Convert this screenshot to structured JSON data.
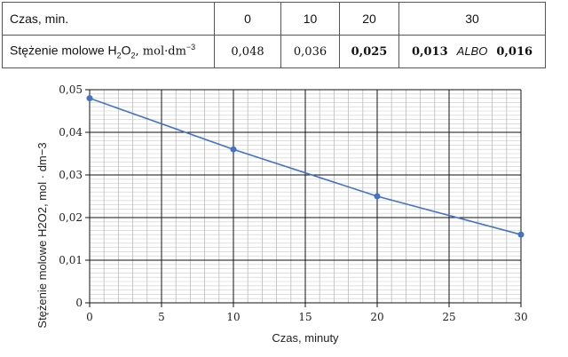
{
  "table": {
    "row1_label": "Czas, min.",
    "row2_label_main": "Stężenie molowe H",
    "row2_label_rest": "O",
    "row2_label_unit": ", mol·dm",
    "times": [
      "0",
      "10",
      "20",
      "30"
    ],
    "values": [
      "0,048",
      "0,036",
      "0,025"
    ],
    "last_a": "0,013",
    "albo": "ALBO",
    "last_b": "0,016"
  },
  "chart_data": {
    "type": "line",
    "x": [
      0,
      10,
      20,
      30
    ],
    "y": [
      0.048,
      0.036,
      0.025,
      0.016
    ],
    "xlabel": "Czas, minuty",
    "ylabel": "Stężenie molowe H2O2, mol · dm−3",
    "xlim": [
      0,
      30
    ],
    "ylim": [
      0,
      0.05
    ],
    "xticks": [
      "0",
      "5",
      "10",
      "15",
      "20",
      "25",
      "30"
    ],
    "yticks": [
      "0",
      "0,01",
      "0,02",
      "0,03",
      "0,04",
      "0,05"
    ],
    "grid": true,
    "color": "#4472c4"
  }
}
